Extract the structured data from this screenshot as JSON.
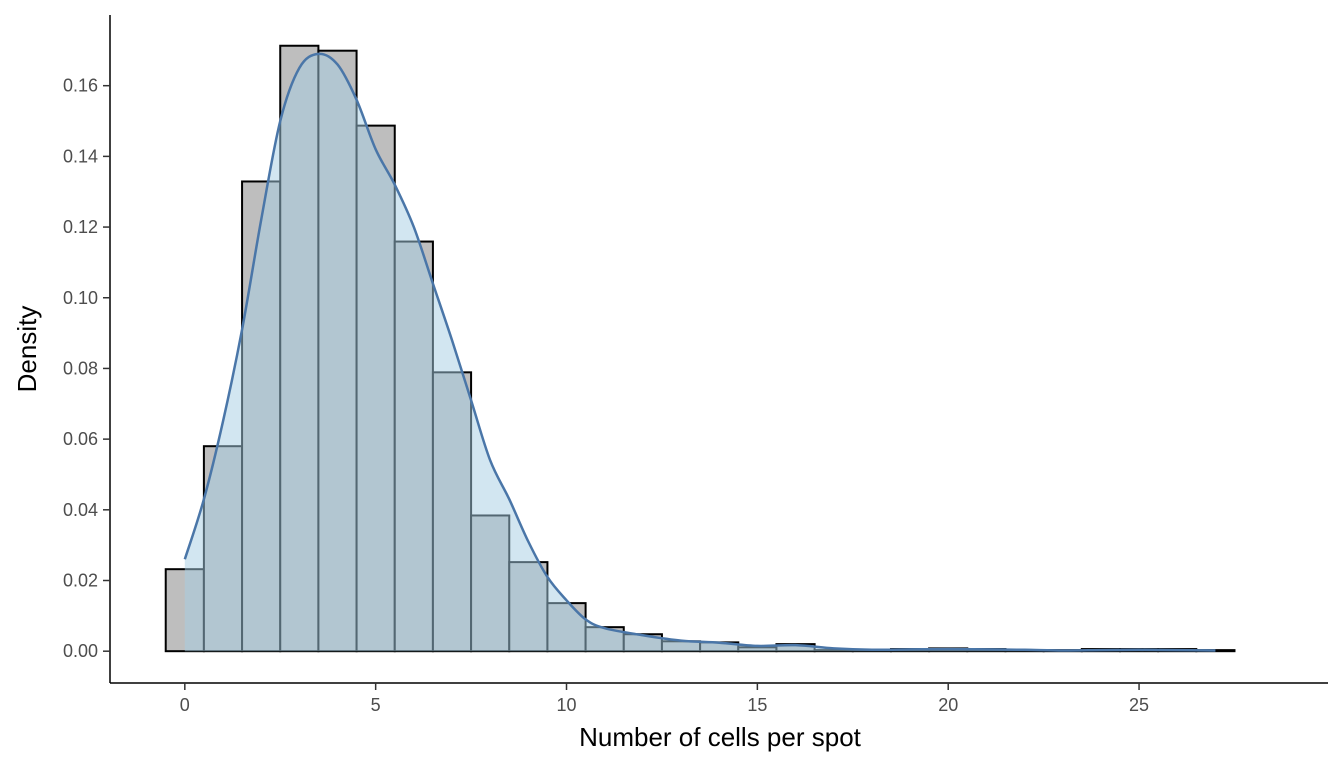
{
  "chart_data": {
    "type": "bar",
    "subtype": "histogram-with-density",
    "title": "",
    "xlabel": "Number of cells per spot",
    "ylabel": "Density",
    "xlim": [
      -1.96,
      29.95
    ],
    "ylim": [
      -0.009,
      0.18
    ],
    "grid": false,
    "x_ticks": [
      0,
      5,
      10,
      15,
      20,
      25
    ],
    "x_tick_labels": [
      "0",
      "5",
      "10",
      "15",
      "20",
      "25"
    ],
    "y_ticks": [
      0,
      0.02,
      0.04,
      0.06,
      0.08,
      0.1,
      0.12,
      0.14,
      0.16
    ],
    "y_tick_labels": [
      "0.00",
      "0.02",
      "0.04",
      "0.06",
      "0.08",
      "0.10",
      "0.12",
      "0.14",
      "0.16"
    ],
    "histogram": {
      "bin_width": 1,
      "bin_centers": [
        0,
        1,
        2,
        3,
        4,
        5,
        6,
        7,
        8,
        9,
        10,
        11,
        12,
        13,
        14,
        15,
        16,
        17,
        18,
        19,
        20,
        21,
        22,
        23,
        24,
        25,
        26,
        27
      ],
      "values": [
        0.0232,
        0.058,
        0.1329,
        0.1713,
        0.1699,
        0.1487,
        0.1159,
        0.0789,
        0.0384,
        0.0252,
        0.0136,
        0.0068,
        0.0048,
        0.0028,
        0.0025,
        0.0011,
        0.002,
        0.0003,
        0.0003,
        0.0006,
        0.0008,
        0.0006,
        0.0003,
        0.0003,
        0.0006,
        0.0006,
        0.0006,
        0.0003
      ],
      "fill": "#bebebe",
      "stroke": "#000000"
    },
    "density": {
      "x": [
        0,
        0.5,
        1,
        1.5,
        2,
        2.5,
        3,
        3.5,
        4,
        4.5,
        5,
        5.5,
        6,
        6.5,
        7,
        7.5,
        8,
        8.5,
        9,
        9.5,
        10,
        10.5,
        11,
        12,
        13,
        14,
        15,
        16,
        17,
        18,
        19,
        20,
        21,
        22,
        23,
        24,
        25,
        26,
        27
      ],
      "y": [
        0.026,
        0.043,
        0.065,
        0.091,
        0.122,
        0.15,
        0.165,
        0.169,
        0.166,
        0.156,
        0.142,
        0.132,
        0.12,
        0.104,
        0.088,
        0.071,
        0.054,
        0.043,
        0.031,
        0.021,
        0.0144,
        0.009,
        0.0065,
        0.0045,
        0.003,
        0.0024,
        0.0015,
        0.0017,
        0.0008,
        0.0004,
        0.0005,
        0.0006,
        0.0005,
        0.0004,
        0.0002,
        0.0003,
        0.0004,
        0.0003,
        0.0002
      ],
      "line_color": "#4a76a8",
      "fill_color": "#a6cee3"
    }
  }
}
